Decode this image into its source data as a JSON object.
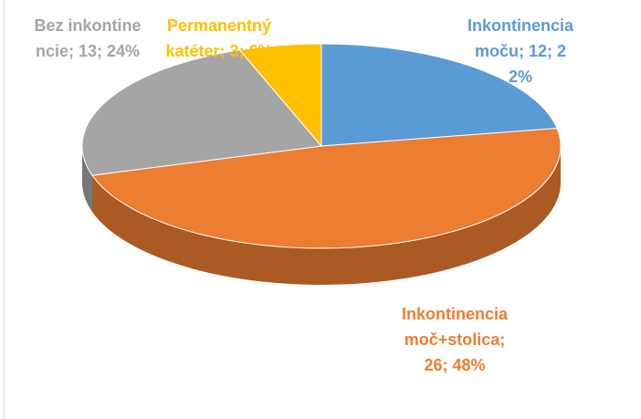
{
  "chart_data": {
    "type": "pie",
    "categories": [
      "Inkontinencia moču",
      "Inkontinencia moč+stolica",
      "Bez inkontinencie",
      "Permanentný katéter"
    ],
    "values": [
      12,
      26,
      13,
      3
    ],
    "value_labels": [
      "Inkontinencia moču; 12; 22%",
      "Inkontinencia moč+stolica; 26; 48%",
      "Bez inkontinencie; 13; 24%",
      "Permanentný katéter; 3; 6%"
    ],
    "colors": [
      "#5b9bd5",
      "#ed7d31",
      "#a5a5a5",
      "#ffc000"
    ]
  }
}
